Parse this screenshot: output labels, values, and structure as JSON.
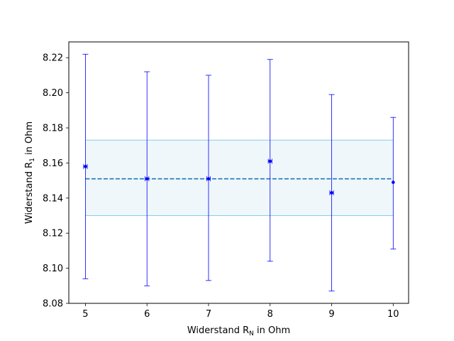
{
  "chart_data": {
    "type": "scatter",
    "title": "",
    "xlabel": {
      "prefix": "Widerstand R",
      "sub": "N",
      "suffix": " in Ohm"
    },
    "ylabel": {
      "prefix": "Widerstand R",
      "sub": "1",
      "suffix": " in Ohm"
    },
    "xlim": [
      4.73,
      10.25
    ],
    "ylim": [
      8.08,
      8.229
    ],
    "xticks": [
      "5",
      "6",
      "7",
      "8",
      "9",
      "10"
    ],
    "xtick_values": [
      5,
      6,
      7,
      8,
      9,
      10
    ],
    "yticks": [
      "8.08",
      "8.10",
      "8.12",
      "8.14",
      "8.16",
      "8.18",
      "8.20",
      "8.22"
    ],
    "ytick_values": [
      8.08,
      8.1,
      8.12,
      8.14,
      8.16,
      8.18,
      8.2,
      8.22
    ],
    "grid": false,
    "legend": "none",
    "series": [
      {
        "points": [
          {
            "x": 5,
            "y": 8.158,
            "yerr_low": 8.094,
            "yerr_high": 8.222,
            "xerr": 0.03
          },
          {
            "x": 6,
            "y": 8.151,
            "yerr_low": 8.09,
            "yerr_high": 8.212,
            "xerr": 0.03
          },
          {
            "x": 7,
            "y": 8.151,
            "yerr_low": 8.093,
            "yerr_high": 8.21,
            "xerr": 0.03
          },
          {
            "x": 8,
            "y": 8.161,
            "yerr_low": 8.104,
            "yerr_high": 8.219,
            "xerr": 0.03
          },
          {
            "x": 9,
            "y": 8.143,
            "yerr_low": 8.087,
            "yerr_high": 8.199,
            "xerr": 0.03
          },
          {
            "x": 10,
            "y": 8.149,
            "yerr_low": 8.111,
            "yerr_high": 8.186,
            "xerr": 0.0
          }
        ]
      }
    ],
    "mean_line": {
      "y": 8.151,
      "x_from": 5,
      "x_to": 10
    },
    "band": {
      "y_low": 8.13,
      "y_high": 8.173,
      "x_from": 5,
      "x_to": 10
    },
    "colors": {
      "points": "#0000ff",
      "mean_line": "#1f77b4",
      "band_fill": "#add8e6",
      "band_edge": "#87ceeb"
    }
  }
}
